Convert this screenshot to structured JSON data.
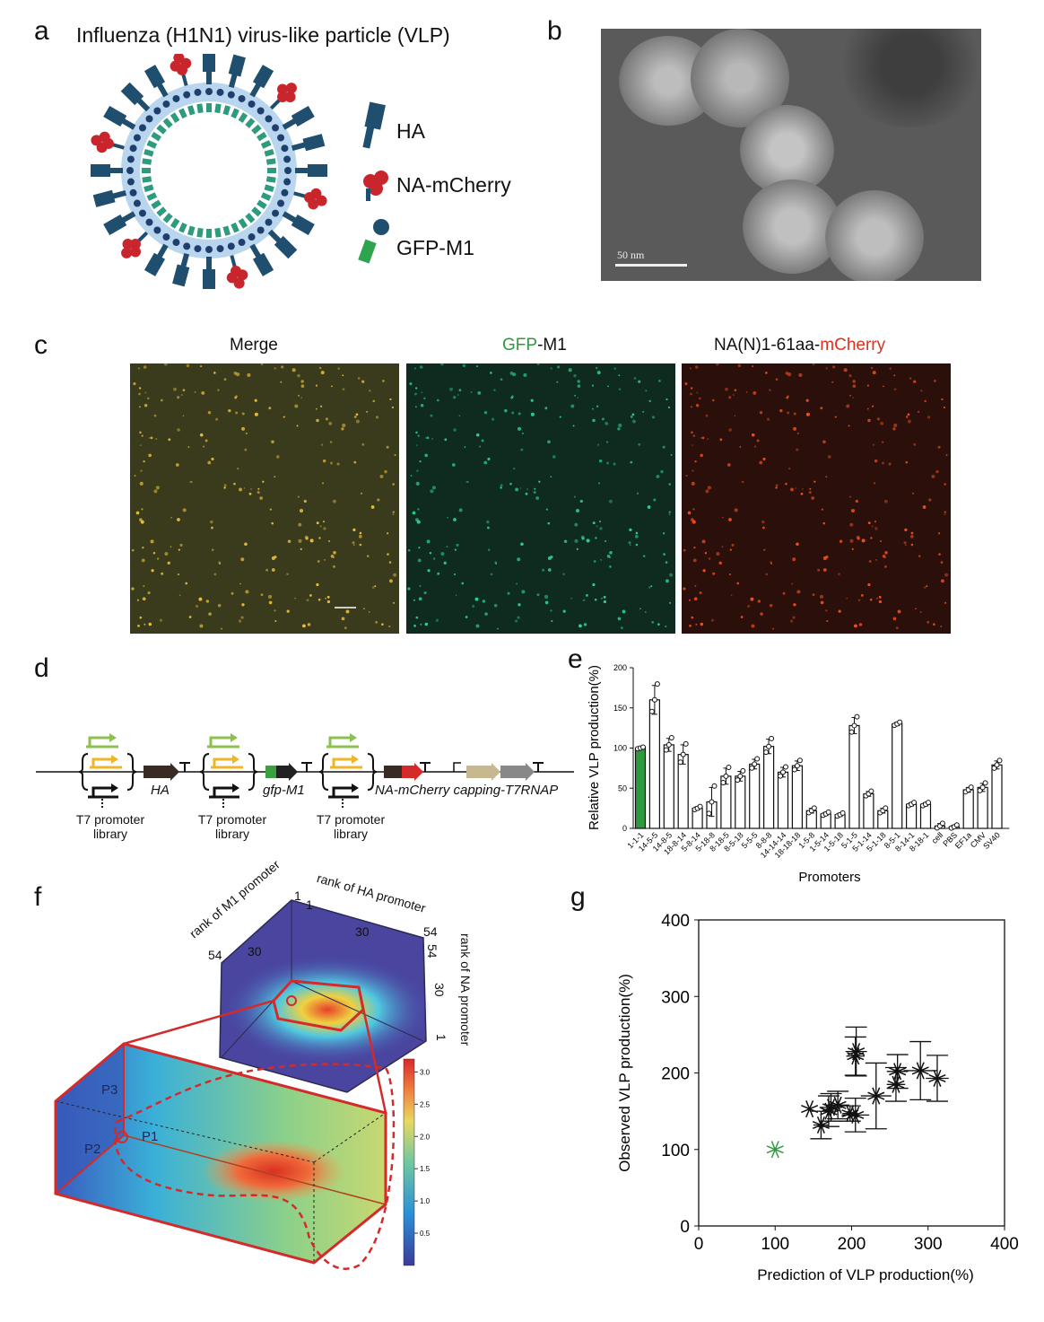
{
  "panels": {
    "a": {
      "label": "a",
      "title": "Influenza (H1N1) virus-like particle (VLP)",
      "legend": [
        "HA",
        "NA-mCherry",
        "GFP-M1"
      ]
    },
    "b": {
      "label": "b",
      "scale_bar": "50 nm"
    },
    "c": {
      "label": "c",
      "titles": {
        "merge": "Merge",
        "gfp_prefix": "GFP",
        "gfp_suffix": "-M1",
        "na_prefix": "NA(N)1-61aa-",
        "na_suffix": "mCherry"
      }
    },
    "d": {
      "label": "d",
      "genes": [
        "HA",
        "gfp-M1",
        "NA-mCherry capping-T7RNAP"
      ],
      "library_label_1": "T7 promoter",
      "library_label_2": "library"
    },
    "e": {
      "label": "e"
    },
    "f": {
      "label": "f",
      "axes": {
        "m1": "rank of M1 promoter",
        "ha": "rank of HA promoter",
        "na": "rank of NA promoter"
      },
      "ticks": {
        "m1": [
          "1",
          "30",
          "54"
        ],
        "ha": [
          "1",
          "30",
          "54"
        ],
        "na": [
          "54",
          "30",
          "1"
        ]
      },
      "points": [
        "P1",
        "P2",
        "P3"
      ],
      "colorbar": {
        "ticks": [
          "3.0",
          "2.5",
          "2.0",
          "1.5",
          "1.0",
          "0.5"
        ],
        "min": 0,
        "max": 3.2
      }
    },
    "g": {
      "label": "g"
    }
  },
  "colors": {
    "green": "#2e9a3e",
    "red": "#d42a2a",
    "ha_blue": "#1f4e6e",
    "orange": "#f0b428"
  },
  "chart_data": [
    {
      "type": "bar",
      "ylabel": "Relative VLP production(%)",
      "xlabel": "Promoters",
      "ylim": [
        0,
        200
      ],
      "yticks": [
        "0",
        "50",
        "100",
        "150",
        "200"
      ],
      "categories": [
        "1-1-1",
        "14-5-5",
        "14-8-5",
        "18-8-14",
        "5-8-14",
        "5-18-8",
        "8-18-5",
        "8-5-18",
        "5-5-5",
        "8-8-8",
        "14-14-14",
        "18-18-18",
        "1-5-8",
        "1-5-14",
        "1-5-18",
        "5-1-5",
        "5-1-14",
        "5-1-18",
        "8-5-1",
        "8-14-1",
        "8-18-1",
        "cell",
        "PBS",
        "EF1a",
        "CMV",
        "SV40"
      ],
      "values": [
        100,
        160,
        104,
        92,
        25,
        33,
        65,
        65,
        80,
        102,
        70,
        78,
        22,
        18,
        17,
        128,
        43,
        22,
        130,
        30,
        30,
        3,
        2,
        48,
        51,
        79
      ],
      "errors": [
        1,
        18,
        8,
        12,
        2,
        18,
        10,
        6,
        6,
        9,
        6,
        6,
        3,
        2,
        2,
        10,
        3,
        3,
        2,
        2,
        2,
        3,
        2,
        3,
        5,
        5
      ],
      "highlight": {
        "category": "1-1-1",
        "color": "#2e9a3e"
      }
    },
    {
      "type": "scatter",
      "xlabel": "Prediction of VLP production(%)",
      "ylabel": "Observed  VLP production(%)",
      "xlim": [
        0,
        400
      ],
      "ylim": [
        0,
        400
      ],
      "xticks": [
        "0",
        "100",
        "200",
        "300",
        "400"
      ],
      "yticks": [
        "0",
        "100",
        "200",
        "300",
        "400"
      ],
      "series": [
        {
          "color": "#2e9a3e",
          "points": [
            {
              "x": 100,
              "y": 100,
              "xerr": 0,
              "yerr": 0
            }
          ]
        },
        {
          "color": "#111111",
          "points": [
            {
              "x": 145,
              "y": 153,
              "xerr": 0,
              "yerr": 0
            },
            {
              "x": 160,
              "y": 132,
              "xerr": 10,
              "yerr": 18
            },
            {
              "x": 170,
              "y": 150,
              "xerr": 12,
              "yerr": 20
            },
            {
              "x": 173,
              "y": 155,
              "xerr": 15,
              "yerr": 18
            },
            {
              "x": 182,
              "y": 158,
              "xerr": 15,
              "yerr": 18
            },
            {
              "x": 198,
              "y": 147,
              "xerr": 10,
              "yerr": 10
            },
            {
              "x": 205,
              "y": 145,
              "xerr": 18,
              "yerr": 22
            },
            {
              "x": 205,
              "y": 222,
              "xerr": 12,
              "yerr": 25
            },
            {
              "x": 206,
              "y": 228,
              "xerr": 14,
              "yerr": 32
            },
            {
              "x": 232,
              "y": 170,
              "xerr": 20,
              "yerr": 43
            },
            {
              "x": 258,
              "y": 185,
              "xerr": 12,
              "yerr": 22
            },
            {
              "x": 260,
              "y": 202,
              "xerr": 14,
              "yerr": 22
            },
            {
              "x": 290,
              "y": 203,
              "xerr": 22,
              "yerr": 38
            },
            {
              "x": 312,
              "y": 193,
              "xerr": 15,
              "yerr": 30
            }
          ]
        }
      ]
    }
  ]
}
